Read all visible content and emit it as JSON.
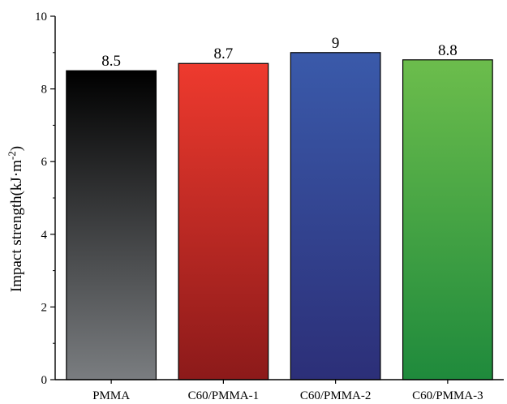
{
  "chart_data": {
    "type": "bar",
    "categories": [
      "PMMA",
      "C60/PMMA-1",
      "C60/PMMA-2",
      "C60/PMMA-3"
    ],
    "values": [
      8.5,
      8.7,
      9,
      8.8
    ],
    "data_labels": [
      "8.5",
      "8.7",
      "9",
      "8.8"
    ],
    "ylabel_main": "Impact strength(kJ·m",
    "ylabel_sup": "-2",
    "ylabel_close": ")",
    "xlabel": "",
    "title": "",
    "ylim": [
      0,
      10
    ],
    "yticks": [
      0,
      2,
      4,
      6,
      8,
      10
    ],
    "ytick_labels": [
      "0",
      "2",
      "4",
      "6",
      "8",
      "10"
    ],
    "grid": false,
    "bar_colors": [
      {
        "top": "#000000",
        "bottom": "#7a7d80"
      },
      {
        "top": "#ee3a2e",
        "bottom": "#8c1a1a"
      },
      {
        "top": "#3a5aaa",
        "bottom": "#2c2f78"
      },
      {
        "top": "#6cbd4c",
        "bottom": "#1f8a3c"
      }
    ]
  }
}
